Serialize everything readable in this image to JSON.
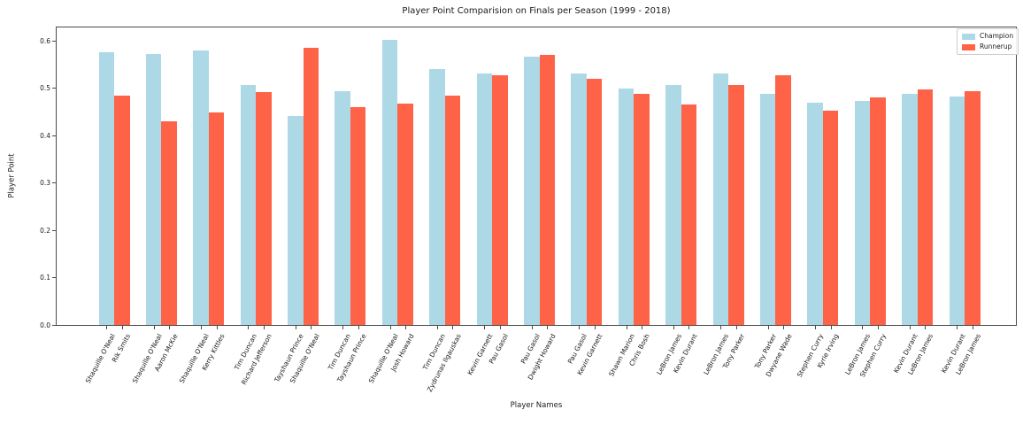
{
  "chart_data": {
    "type": "bar",
    "title": "Player Point Comparision on Finals per Season (1999 - 2018)",
    "xlabel": "Player Names",
    "ylabel": "Player Point",
    "ylim": [
      0.0,
      0.63
    ],
    "yticks": [
      "0.0",
      "0.1",
      "0.2",
      "0.3",
      "0.4",
      "0.5",
      "0.6"
    ],
    "grid": false,
    "legend": {
      "position": "upper right"
    },
    "series": [
      {
        "name": "Champion",
        "color": "#ADD8E6",
        "labels": [
          "Shaquille O'Neal",
          "Shaquille O'Neal",
          "Shaquille O'Neal",
          "Tim Duncan",
          "Tayshaun Prince",
          "Tim Duncan",
          "Shaquille O'Neal",
          "Tim Duncan",
          "Kevin Garnett",
          "Pau Gasol",
          "Pau Gasol",
          "Shawn Marion",
          "LeBron James",
          "LeBron James",
          "Tony Parker",
          "Stephen Curry",
          "LeBron James",
          "Kevin Durant",
          "Kevin Durant"
        ],
        "values": [
          0.575,
          0.572,
          0.58,
          0.507,
          0.441,
          0.493,
          0.601,
          0.541,
          0.531,
          0.567,
          0.531,
          0.5,
          0.506,
          0.531,
          0.487,
          0.469,
          0.472,
          0.488,
          0.483
        ]
      },
      {
        "name": "Runnerup",
        "color": "#FF6347",
        "labels": [
          "Rik Smits",
          "Aaron McKie",
          "Kerry Kittles",
          "Richard Jefferson",
          "Shaquille O'Neal",
          "Tayshaun Prince",
          "Josh Howard",
          "Zydrunas Ilgauskas",
          "Pau Gasol",
          "Dwight Howard",
          "Kevin Garnett",
          "Chris Bosh",
          "Kevin Durant",
          "Tony Parker",
          "Dwyane Wade",
          "Kyrie Irving",
          "Stephen Curry",
          "LeBron James",
          "LeBron James"
        ],
        "values": [
          0.485,
          0.43,
          0.449,
          0.492,
          0.585,
          0.46,
          0.467,
          0.484,
          0.527,
          0.571,
          0.519,
          0.488,
          0.465,
          0.507,
          0.528,
          0.452,
          0.481,
          0.497,
          0.494
        ]
      }
    ]
  }
}
